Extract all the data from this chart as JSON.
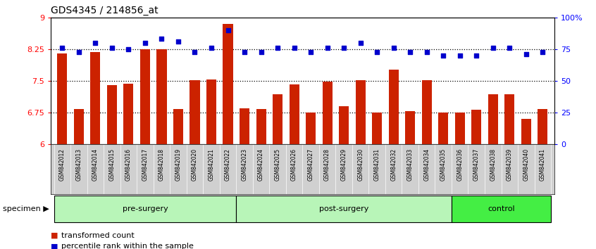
{
  "title": "GDS4345 / 214856_at",
  "samples": [
    "GSM842012",
    "GSM842013",
    "GSM842014",
    "GSM842015",
    "GSM842016",
    "GSM842017",
    "GSM842018",
    "GSM842019",
    "GSM842020",
    "GSM842021",
    "GSM842022",
    "GSM842023",
    "GSM842024",
    "GSM842025",
    "GSM842026",
    "GSM842027",
    "GSM842028",
    "GSM842029",
    "GSM842030",
    "GSM842031",
    "GSM842032",
    "GSM842033",
    "GSM842034",
    "GSM842035",
    "GSM842036",
    "GSM842037",
    "GSM842038",
    "GSM842039",
    "GSM842040",
    "GSM842041"
  ],
  "bar_values": [
    8.15,
    6.83,
    8.18,
    7.4,
    7.43,
    8.25,
    8.25,
    6.83,
    7.52,
    7.53,
    8.85,
    6.85,
    6.83,
    7.18,
    7.42,
    6.75,
    7.48,
    6.9,
    7.51,
    6.75,
    7.77,
    6.78,
    7.52,
    6.75,
    6.75,
    6.82,
    7.18,
    7.18,
    6.6,
    6.83
  ],
  "percentile_values": [
    76,
    73,
    80,
    76,
    75,
    80,
    83,
    81,
    73,
    76,
    90,
    73,
    73,
    76,
    76,
    73,
    76,
    76,
    80,
    73,
    76,
    73,
    73,
    70,
    70,
    70,
    76,
    76,
    71,
    73
  ],
  "groups": [
    {
      "label": "pre-surgery",
      "start": 0,
      "end": 11
    },
    {
      "label": "post-surgery",
      "start": 11,
      "end": 24
    },
    {
      "label": "control",
      "start": 24,
      "end": 30
    }
  ],
  "group_colors": [
    "#b8f5b8",
    "#b8f5b8",
    "#44ee44"
  ],
  "bar_color": "#cc2200",
  "dot_color": "#0000cc",
  "ylim_left": [
    6.0,
    9.0
  ],
  "ylim_right": [
    0,
    100
  ],
  "yticks_left": [
    6.0,
    6.75,
    7.5,
    8.25,
    9.0
  ],
  "yticks_right": [
    0,
    25,
    50,
    75,
    100
  ],
  "yticklabels_left": [
    "6",
    "6.75",
    "7.5",
    "8.25",
    "9"
  ],
  "yticklabels_right": [
    "0",
    "25",
    "50",
    "75",
    "100%"
  ],
  "hlines": [
    6.75,
    7.5,
    8.25
  ],
  "legend_bar": "transformed count",
  "legend_dot": "percentile rank within the sample"
}
